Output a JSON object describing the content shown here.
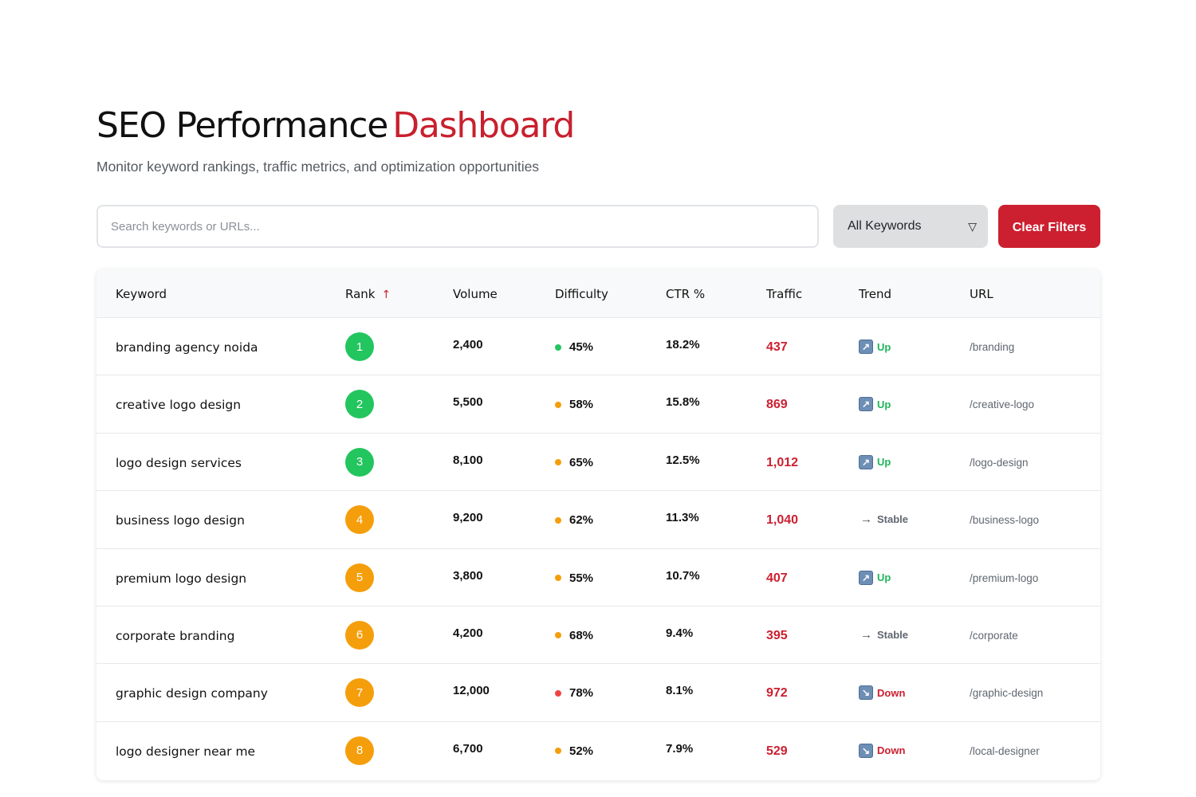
{
  "header": {
    "title_main": "SEO Performance",
    "title_accent": "Dashboard",
    "subtitle": "Monitor keyword rankings, traffic metrics, and optimization opportunities"
  },
  "toolbar": {
    "search_placeholder": "Search keywords or URLs...",
    "filter_value": "All Keywords",
    "filter_caret": "▽",
    "clear_label": "Clear Filters"
  },
  "table": {
    "columns": [
      "Keyword",
      "Rank",
      "Volume",
      "Difficulty",
      "CTR %",
      "Traffic",
      "Trend",
      "URL"
    ],
    "sort_indicator": "↑",
    "rows": [
      {
        "keyword": "branding agency noida",
        "rank": "1",
        "rank_color": "green",
        "volume": "2,400",
        "difficulty": "45%",
        "difficulty_color": "#22c55e",
        "ctr": "18.2%",
        "traffic": "437",
        "trend": "Up",
        "trend_type": "up",
        "url": "/branding"
      },
      {
        "keyword": "creative logo design",
        "rank": "2",
        "rank_color": "green",
        "volume": "5,500",
        "difficulty": "58%",
        "difficulty_color": "#f59e0b",
        "ctr": "15.8%",
        "traffic": "869",
        "trend": "Up",
        "trend_type": "up",
        "url": "/creative-logo"
      },
      {
        "keyword": "logo design services",
        "rank": "3",
        "rank_color": "green",
        "volume": "8,100",
        "difficulty": "65%",
        "difficulty_color": "#f59e0b",
        "ctr": "12.5%",
        "traffic": "1,012",
        "trend": "Up",
        "trend_type": "up",
        "url": "/logo-design"
      },
      {
        "keyword": "business logo design",
        "rank": "4",
        "rank_color": "orange",
        "volume": "9,200",
        "difficulty": "62%",
        "difficulty_color": "#f59e0b",
        "ctr": "11.3%",
        "traffic": "1,040",
        "trend": "Stable",
        "trend_type": "stable",
        "url": "/business-logo"
      },
      {
        "keyword": "premium logo design",
        "rank": "5",
        "rank_color": "orange",
        "volume": "3,800",
        "difficulty": "55%",
        "difficulty_color": "#f59e0b",
        "ctr": "10.7%",
        "traffic": "407",
        "trend": "Up",
        "trend_type": "up",
        "url": "/premium-logo"
      },
      {
        "keyword": "corporate branding",
        "rank": "6",
        "rank_color": "orange",
        "volume": "4,200",
        "difficulty": "68%",
        "difficulty_color": "#f59e0b",
        "ctr": "9.4%",
        "traffic": "395",
        "trend": "Stable",
        "trend_type": "stable",
        "url": "/corporate"
      },
      {
        "keyword": "graphic design company",
        "rank": "7",
        "rank_color": "orange",
        "volume": "12,000",
        "difficulty": "78%",
        "difficulty_color": "#ef4444",
        "ctr": "8.1%",
        "traffic": "972",
        "trend": "Down",
        "trend_type": "down",
        "url": "/graphic-design"
      },
      {
        "keyword": "logo designer near me",
        "rank": "8",
        "rank_color": "orange",
        "volume": "6,700",
        "difficulty": "52%",
        "difficulty_color": "#f59e0b",
        "ctr": "7.9%",
        "traffic": "529",
        "trend": "Down",
        "trend_type": "down",
        "url": "/local-designer"
      }
    ]
  }
}
